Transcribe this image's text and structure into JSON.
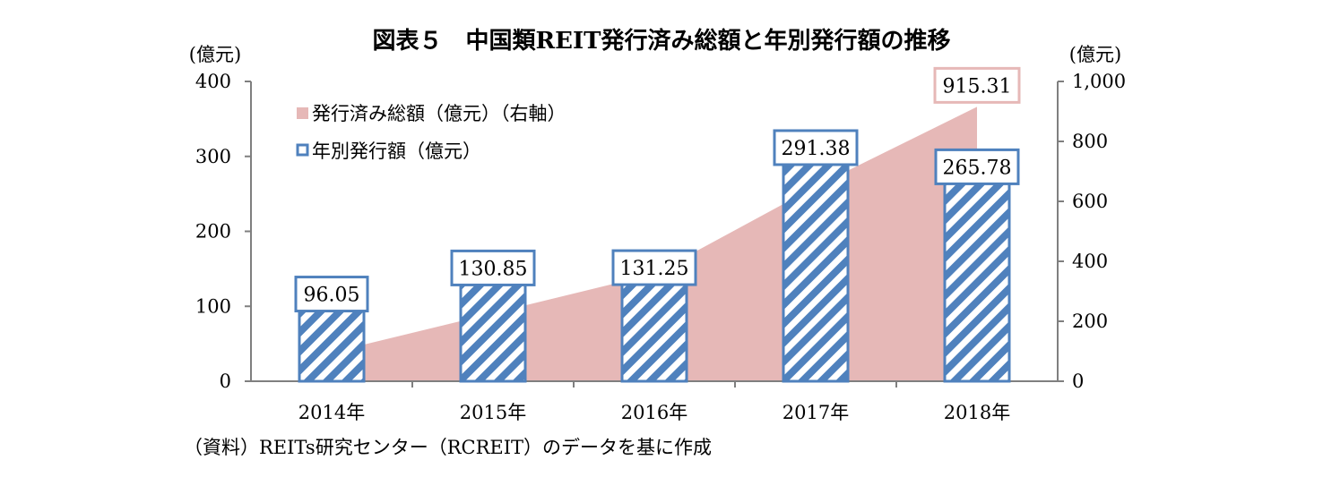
{
  "chart_data": {
    "type": "bar",
    "title": "図表５　中国類REIT発行済み総額と年別発行額の推移",
    "y_left_unit": "(億元)",
    "y_right_unit": "(億元)",
    "categories": [
      "2014年",
      "2015年",
      "2016年",
      "2017年",
      "2018年"
    ],
    "y_left_ticks": [
      "0",
      "100",
      "200",
      "300",
      "400"
    ],
    "y_right_ticks": [
      "0",
      "200",
      "400",
      "600",
      "800",
      "1,000"
    ],
    "ylim_left": [
      0,
      400
    ],
    "ylim_right": [
      0,
      1000
    ],
    "series": [
      {
        "name": "発行済み総額（億元）（右軸）",
        "type": "area",
        "axis": "right",
        "color": "#e6b8b7",
        "values": [
          96.05,
          226.9,
          358.15,
          649.53,
          915.31
        ]
      },
      {
        "name": "年別発行額（億元）",
        "type": "bar",
        "axis": "left",
        "color": "#4f81bd",
        "values": [
          96.05,
          130.85,
          131.25,
          291.38,
          265.78
        ]
      }
    ],
    "data_labels": {
      "bars": [
        "96.05",
        "130.85",
        "131.25",
        "291.38",
        "265.78"
      ],
      "area_last": "915.31"
    },
    "source": "（資料）REITs研究センター（RCREIT）のデータを基に作成"
  }
}
